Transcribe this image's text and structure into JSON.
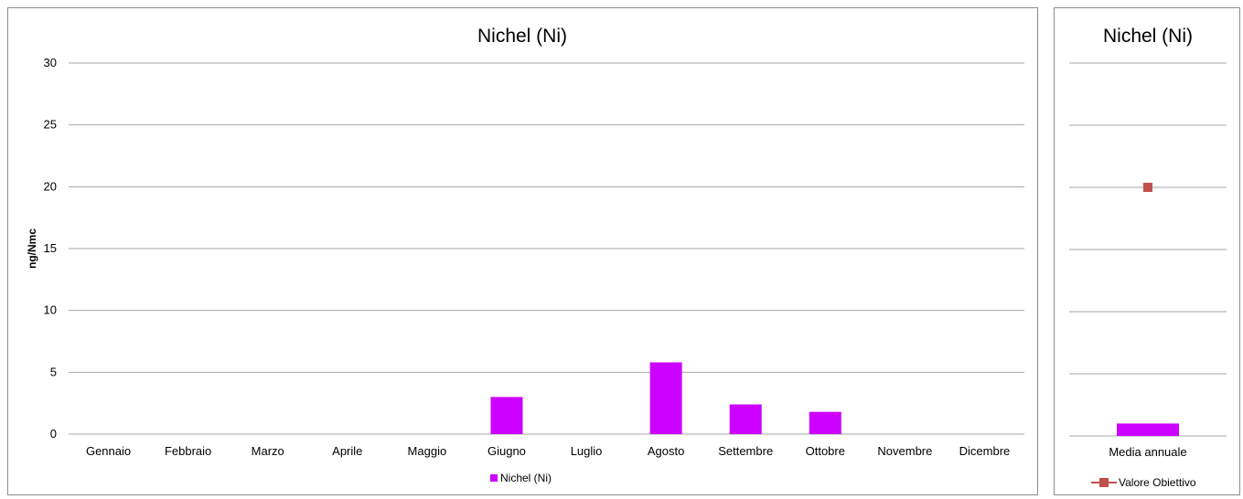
{
  "chart_data": [
    {
      "type": "bar",
      "title": "Nichel (Ni)",
      "ylabel": "ng/Nmc",
      "xlabel": "",
      "ylim": [
        0,
        30
      ],
      "yticks": [
        0,
        5,
        10,
        15,
        20,
        25,
        30
      ],
      "categories": [
        "Gennaio",
        "Febbraio",
        "Marzo",
        "Aprile",
        "Maggio",
        "Giugno",
        "Luglio",
        "Agosto",
        "Settembre",
        "Ottobre",
        "Novembre",
        "Dicembre"
      ],
      "series": [
        {
          "name": "Nichel (Ni)",
          "color": "#cc00ff",
          "values": [
            null,
            null,
            null,
            null,
            null,
            3.0,
            null,
            5.8,
            2.4,
            1.8,
            null,
            null
          ]
        }
      ],
      "grid": true,
      "legend": "bottom"
    },
    {
      "type": "bar",
      "title": "Nichel (Ni)",
      "xlabel": "",
      "ylabel": "",
      "ylim": [
        0,
        30
      ],
      "categories": [
        "Media annuale"
      ],
      "series": [
        {
          "name": "",
          "type": "bar",
          "color": "#cc00ff",
          "values": [
            1.0
          ]
        },
        {
          "name": "Valore Obiettivo",
          "type": "line-marker",
          "color": "#c0504d",
          "marker": "square",
          "values": [
            20
          ]
        }
      ],
      "grid": true,
      "legend": "bottom"
    }
  ]
}
